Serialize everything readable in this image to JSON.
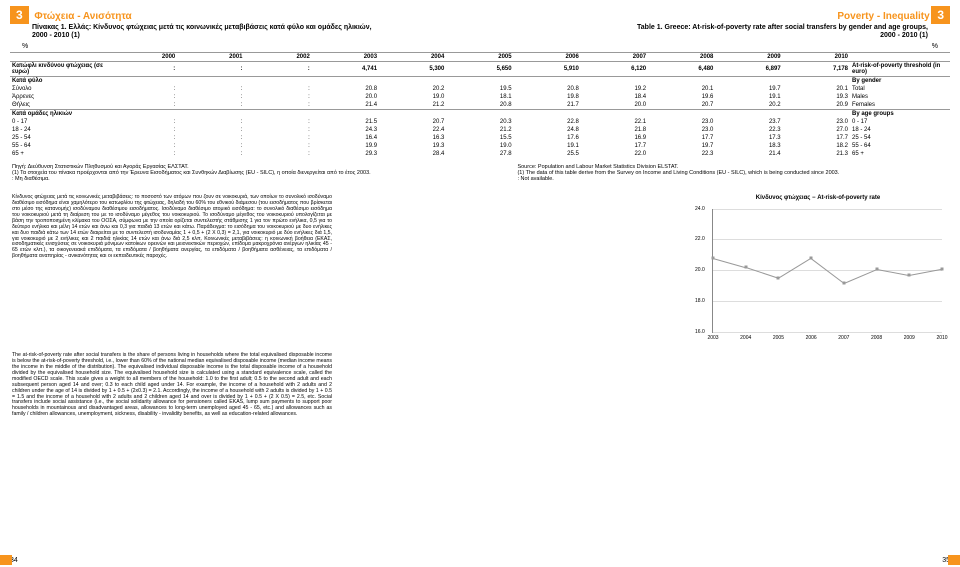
{
  "section": {
    "num": "3",
    "title_gr": "Φτώχεια - Ανισότητα",
    "title_en": "Poverty - Inequality"
  },
  "left": {
    "caption": "Πίνακας 1. Ελλάς: Κίνδυνος φτώχειας μετά τις κοινωνικές μεταβιβάσεις κατά φύλο και ομάδες ηλικιών,",
    "subcaption": "2000 - 2010 (1)",
    "pct": "%"
  },
  "right": {
    "caption": "Table 1. Greece: At-risk-of-poverty rate after social transfers by gender and age groups,",
    "subcaption": "2000 - 2010 (1)",
    "pct": "%"
  },
  "years": [
    "2000",
    "2001",
    "2002",
    "2003",
    "2004",
    "2005",
    "2006",
    "2007",
    "2008",
    "2009",
    "2010"
  ],
  "row_threshold": {
    "gr": "Κατώφλι κινδύνου φτώχειας (σε ευρώ)",
    "vals": [
      ":",
      ":",
      ":",
      "4,741",
      "5,300",
      "5,650",
      "5,910",
      "6,120",
      "6,480",
      "6,897",
      "7,178"
    ],
    "en": "At-risk-of-poverty threshold (in euro)"
  },
  "g1": {
    "head_gr": "Κατά φύλο",
    "head_en": "By gender",
    "rows": [
      {
        "gr": "Σύνολο",
        "v": [
          ":",
          ":",
          ":",
          "20.8",
          "20.2",
          "19.5",
          "20.8",
          "19.2",
          "20.1",
          "19.7",
          "20.1"
        ],
        "en": "Total"
      },
      {
        "gr": "Άρρενες",
        "v": [
          ":",
          ":",
          ":",
          "20.0",
          "19.0",
          "18.1",
          "19.8",
          "18.4",
          "19.6",
          "19.1",
          "19.3"
        ],
        "en": "Males"
      },
      {
        "gr": "Θήλεις",
        "v": [
          ":",
          ":",
          ":",
          "21.4",
          "21.2",
          "20.8",
          "21.7",
          "20.0",
          "20.7",
          "20.2",
          "20.9"
        ],
        "en": "Females"
      }
    ]
  },
  "g2": {
    "head_gr": "Κατά ομάδες ηλικιών",
    "head_en": "By age groups",
    "rows": [
      {
        "gr": "0 - 17",
        "v": [
          ":",
          ":",
          ":",
          "21.5",
          "20.7",
          "20.3",
          "22.8",
          "22.1",
          "23.0",
          "23.7",
          "23.0"
        ],
        "en": "0 - 17"
      },
      {
        "gr": "18 - 24",
        "v": [
          ":",
          ":",
          ":",
          "24.3",
          "22.4",
          "21.2",
          "24.8",
          "21.8",
          "23.0",
          "22.3",
          "27.0"
        ],
        "en": "18 - 24"
      },
      {
        "gr": "25 - 54",
        "v": [
          ":",
          ":",
          ":",
          "16.4",
          "16.3",
          "15.5",
          "17.6",
          "16.9",
          "17.7",
          "17.3",
          "17.7"
        ],
        "en": "25 - 54"
      },
      {
        "gr": "55 - 64",
        "v": [
          ":",
          ":",
          ":",
          "19.9",
          "19.3",
          "19.0",
          "19.1",
          "17.7",
          "19.7",
          "18.3",
          "18.2"
        ],
        "en": "55 - 64"
      },
      {
        "gr": "65 +",
        "v": [
          ":",
          ":",
          ":",
          "29.3",
          "28.4",
          "27.8",
          "25.5",
          "22.0",
          "22.3",
          "21.4",
          "21.3"
        ],
        "en": "65 +"
      }
    ]
  },
  "src_gr": "Πηγή: Διεύθυνση Στατιστικών Πληθυσμού και Αγοράς Εργασίας ΕΛΣΤΑΤ.\n(1) Τα στοιχεία του πίνακα προέρχονται από την Έρευνα Εισοδήματος και Συνθηκών Διαβίωσης (EU - SILC), η οποία διενεργείται από το έτος 2003.\n: Μη διαθέσιμα.",
  "src_en": "Source: Population and Labour Market Statistics Division ELSTAT.\n(1) The data of this table derive from the Survey on Income and Living Conditions (EU - SILC), which is being conducted since 2003.\n: Not available.",
  "greek_block": "Κίνδυνος φτώχειας μετά τις κοινωνικές μεταβιβάσεις: το ποσοστό των ατόμων που ζουν σε νοικοκυριά, των οποίων το συνολικό ισοδύναμο διαθέσιμο εισόδημα είναι χαμηλότερο του κατωφλίου της φτώχειας, δηλαδή του 60% του εθνικού διάμεσου (του εισοδήματος που βρίσκεται στο μέσο της κατανομής) ισοδύναμου διαθέσιμου εισοδήματος. Ισοδύναμο διαθέσιμο ατομικό εισόδημα: το συνολικό διαθέσιμο εισόδημα του νοικοκυριού μετά τη διαίρεση του με το ισοδύναμο μέγεθος του νοικοκυριού. Το ισοδύναμο μέγεθος του νοικοκυριού υπολογίζεται με βάση την τροποποιημένη κλίμακα του ΟΟΣΑ, σύμφωνα με την οποία ορίζεται συντελεστής στάθμισης 1 για τον πρώτο ενήλικα, 0,5 για το δεύτερο ενήλικα και μέλη 14 ετών και άνω και 0,3 για παιδιά 13 ετών και κάτω. Παράδειγμα: το εισόδημα του νοικοκυριού με δυο ενήλικες και δυο παιδιά κάτω των 14 ετών διαιρείται με το συντελεστή ισοδυναμίας 1 + 0,5 + (2 Χ 0,3) = 2,1, για νοικοκυριό με δύο ενήλικες διά 1,5, για νοικοκυριό με 2 ενήλικες και 2 παιδιά ηλικίας 14 ετών και άνω διά 2,5 κλπ. Κοινωνικές μεταβιβάσεις: η κοινωνική βοήθεια (ΕΚΑΣ, εισοδηματικές ενισχύσεις σε νοικοκυριά μόνιμων κατοίκων ορεινών και μειονεκτικών περιοχών, επίδομα μακροχρόνια ανέργων ηλικίας 45 - 65 ετών κλπ.), τα οικογενειακά επιδόματα, τα επιδόματα / βοηθήματα ανεργίας, τα επιδόματα / βοηθήματα ασθένειας, τα επιδόματα / βοηθήματα αναπηρίας - ανικανότητας και οι εκπαιδευτικές παροχές.",
  "eng_block": "The at-risk-of-poverty rate after social transfers is the share of persons living in households where the total equivalised disposable income is below the at-risk-of-poverty threshold, i.e., lower than 60% of the national median equivalised disposable income (median income means the income in the middle of the distribution). The equivalised individual disposable income is the total disposable income of a household divided by the equivalised household size. The equivalised household size is calculated using a standard equivalence scale, called the modified OECD scale. This scale gives a weight to all members of the household: 1.0 to the first adult; 0.5 to the second adult and each subsequent person aged 14 and over; 0.3 to each child aged under 14. For example, the income of a household with 2 adults and 2 children under the age of 14 is divided by 1 + 0.5 + (2x0.3) = 2.1. Accordingly, the income of a household with 2 adults is divided by 1 + 0.5 = 1.5 and the income of a household with 2 adults and 2 children aged 14 and over is divided by 1 + 0.5 + (2 X 0.5) = 2.5, etc. Social transfers include social assistance (i.e., the social solidarity allowance for pensioners called EKAS, lump sum payments to support poor households in mountainous and disadvantaged areas, allowances to long-term unemployed aged 45 - 65, etc.) and allowances such as family / children allowances, unemployment, sickness, disability - invalidity benefits, as well as education-related allowances.",
  "chart": {
    "title": "Κίνδυνος φτώχειας − At-risk-of-poverty rate",
    "x": [
      "2003",
      "2004",
      "2005",
      "2006",
      "2007",
      "2008",
      "2009",
      "2010"
    ],
    "y": [
      20.8,
      20.2,
      19.5,
      20.8,
      19.2,
      20.1,
      19.7,
      20.1
    ],
    "ylim": [
      16,
      24
    ],
    "yticks": [
      16.0,
      18.0,
      20.0,
      22.0,
      24.0
    ],
    "color": "#999999"
  },
  "page_left": "34",
  "page_right": "35"
}
